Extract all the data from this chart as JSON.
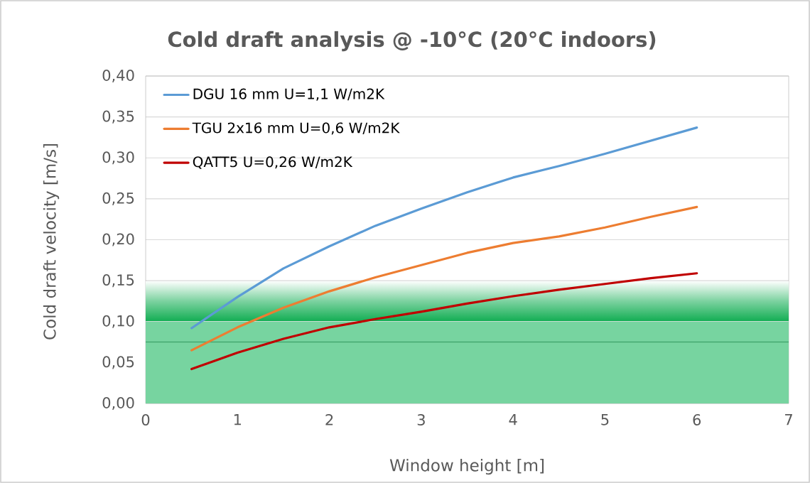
{
  "chart_data": {
    "type": "line",
    "title": "Cold draft analysis @ -10°C (20°C indoors)",
    "xlabel": "Window height [m]",
    "ylabel": "Cold draft velocity [m/s]",
    "x": [
      0.5,
      1,
      1.5,
      2,
      2.5,
      3,
      3.5,
      4,
      4.5,
      5,
      5.5,
      6
    ],
    "series": [
      {
        "name": "DGU 16 mm U=1,1 W/m2K",
        "color": "#5b9bd5",
        "values": [
          0.092,
          0.13,
          0.165,
          0.192,
          0.217,
          0.238,
          0.258,
          0.276,
          0.29,
          0.305,
          0.321,
          0.337
        ]
      },
      {
        "name": "TGU 2x16 mm U=0,6 W/m2K",
        "color": "#ed7d31",
        "values": [
          0.065,
          0.093,
          0.117,
          0.137,
          0.154,
          0.169,
          0.184,
          0.196,
          0.204,
          0.215,
          0.228,
          0.24
        ]
      },
      {
        "name": "QATT5 U=0,26 W/m2K",
        "color": "#c00000",
        "values": [
          0.042,
          0.062,
          0.079,
          0.093,
          0.103,
          0.112,
          0.122,
          0.131,
          0.139,
          0.146,
          0.153,
          0.159
        ]
      }
    ],
    "xlim": [
      0,
      7
    ],
    "xticks": [
      0,
      1,
      2,
      3,
      4,
      5,
      6,
      7
    ],
    "ylim": [
      0,
      0.4
    ],
    "yticks": [
      {
        "value": 0,
        "label": "0,00"
      },
      {
        "value": 0.05,
        "label": "0,05"
      },
      {
        "value": 0.1,
        "label": "0,10"
      },
      {
        "value": 0.15,
        "label": "0,15"
      },
      {
        "value": 0.2,
        "label": "0,20"
      },
      {
        "value": 0.25,
        "label": "0,25"
      },
      {
        "value": 0.3,
        "label": "0,30"
      },
      {
        "value": 0.35,
        "label": "0,35"
      },
      {
        "value": 0.4,
        "label": "0,40"
      }
    ],
    "bands": [
      {
        "axis": "y",
        "from": 0,
        "to": 0.1,
        "color": "#77d4a0"
      },
      {
        "axis": "y",
        "from": 0.1,
        "to": 0.15,
        "color": "#11ad52"
      }
    ],
    "ref_lines": [
      {
        "axis": "y",
        "value": 0.075,
        "color": "#44a870"
      }
    ],
    "grid": "y",
    "legend": "top left",
    "marker": "none",
    "line_style": "solid"
  }
}
